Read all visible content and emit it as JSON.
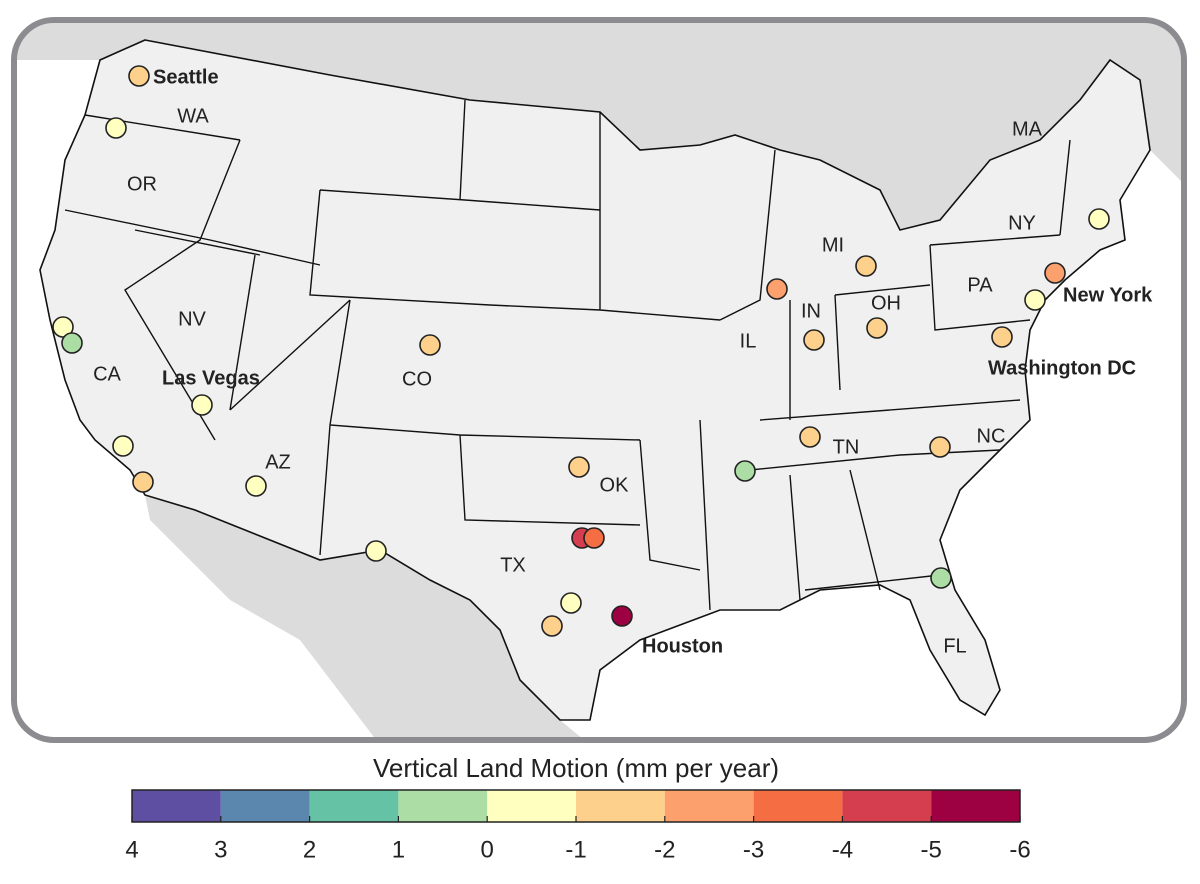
{
  "map": {
    "state_labels": [
      "WA",
      "OR",
      "CA",
      "NV",
      "AZ",
      "CO",
      "TX",
      "OK",
      "IL",
      "IN",
      "MI",
      "OH",
      "TN",
      "NC",
      "FL",
      "PA",
      "NY",
      "MA"
    ],
    "city_labels": [
      "Seattle",
      "Las Vegas",
      "Houston",
      "New York",
      "Washington DC"
    ],
    "stations": [
      -1.5,
      -0.5,
      -0.5,
      0.5,
      -0.5,
      -1.5,
      -0.5,
      -0.5,
      -1.5,
      -0.5,
      -1.5,
      -4.5,
      -3.5,
      -0.5,
      -1.5,
      -5.5,
      0.5,
      -2.5,
      -1.5,
      -1.5,
      -1.5,
      -1.5,
      -1.5,
      -2.5,
      -0.5,
      -1.5,
      -0.5,
      0.5
    ]
  },
  "colorbar": {
    "title": "Vertical Land Motion (mm per year)",
    "ticks": [
      4,
      3,
      2,
      1,
      0,
      -1,
      -2,
      -3,
      -4,
      -5,
      -6
    ],
    "colors": [
      "#5e4fa2",
      "#5b86ae",
      "#66c2a5",
      "#abdda4",
      "#ffffbf",
      "#fdd08c",
      "#fca06e",
      "#f46d43",
      "#d53e4f",
      "#9e0142"
    ]
  }
}
